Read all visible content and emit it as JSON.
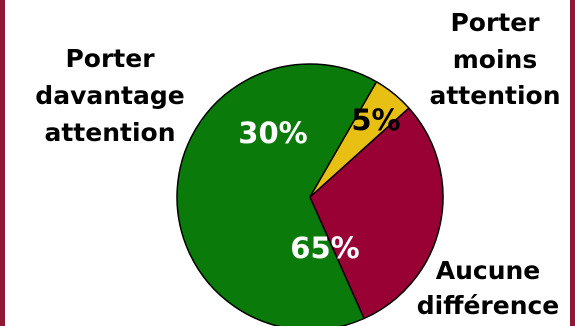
{
  "chart_data": {
    "type": "pie",
    "slices": [
      {
        "label": [
          "Aucune",
          "différence"
        ],
        "value": 65,
        "value_label": "65%",
        "color": "#0a7a0a",
        "label_color": "#ffffff"
      },
      {
        "label": [
          "Porter",
          "davantage",
          "attention"
        ],
        "value": 30,
        "value_label": "30%",
        "color": "#990033",
        "label_color": "#ffffff"
      },
      {
        "label": [
          "Porter",
          "moins",
          "attention"
        ],
        "value": 5,
        "value_label": "5%",
        "color": "#e8c014",
        "label_color": "#000000"
      }
    ],
    "legend": "none",
    "border_color": "#8f1837"
  }
}
